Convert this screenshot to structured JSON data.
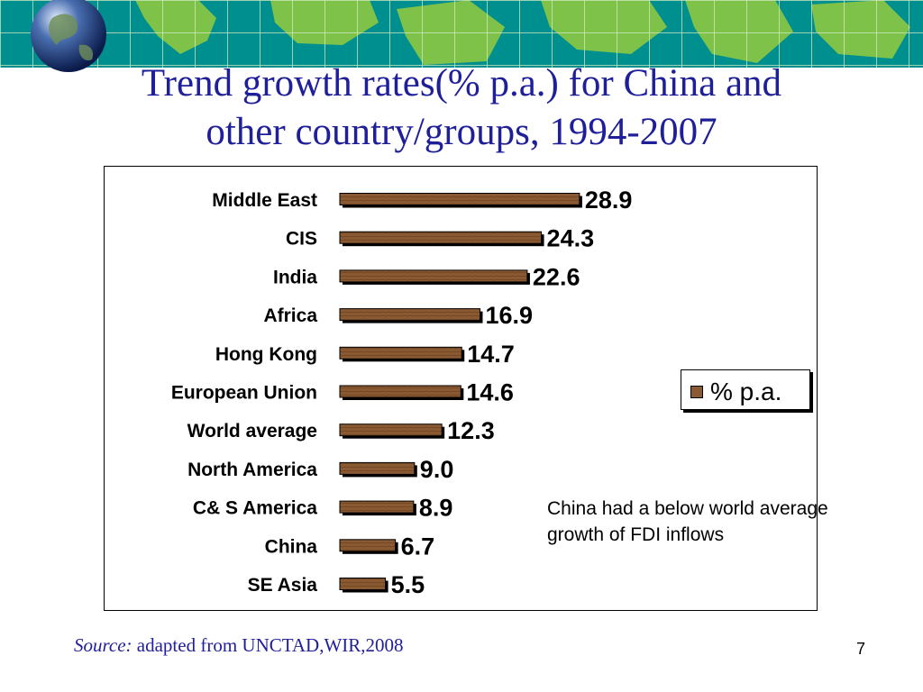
{
  "title_lines": [
    "Trend growth rates(% p.a.) for China and",
    "other country/groups, 1994-2007"
  ],
  "legend": {
    "label": "% p.a."
  },
  "annotation": {
    "line1": "China had a below world average",
    "line2": "growth of FDI inflows"
  },
  "source": {
    "prefix": "Source:",
    "text": " adapted from UNCTAD,WIR,2008"
  },
  "page_number": "7",
  "colors": {
    "title": "#1f1f99",
    "bar": "#8a5a32",
    "bar_dark": "#6b3f1f",
    "banner": "#008f8f",
    "land": "#7fc24a"
  },
  "chart_data": {
    "type": "bar",
    "orientation": "horizontal",
    "title": "",
    "xlabel": "",
    "ylabel": "",
    "categories": [
      "Middle East",
      "CIS",
      "India",
      "Africa",
      "Hong Kong",
      "European Union",
      "World average",
      "North America",
      "C& S America",
      "China",
      "SE Asia"
    ],
    "series": [
      {
        "name": "% p.a.",
        "values": [
          28.9,
          24.3,
          22.6,
          16.9,
          14.7,
          14.6,
          12.3,
          9.0,
          8.9,
          6.7,
          5.5
        ]
      }
    ],
    "value_labels": [
      "28.9",
      "24.3",
      "22.6",
      "16.9",
      "14.7",
      "14.6",
      "12.3",
      "9.0",
      "8.9",
      "6.7",
      "5.5"
    ],
    "xlim": [
      0,
      31
    ],
    "grid": false,
    "legend_position": "right"
  }
}
